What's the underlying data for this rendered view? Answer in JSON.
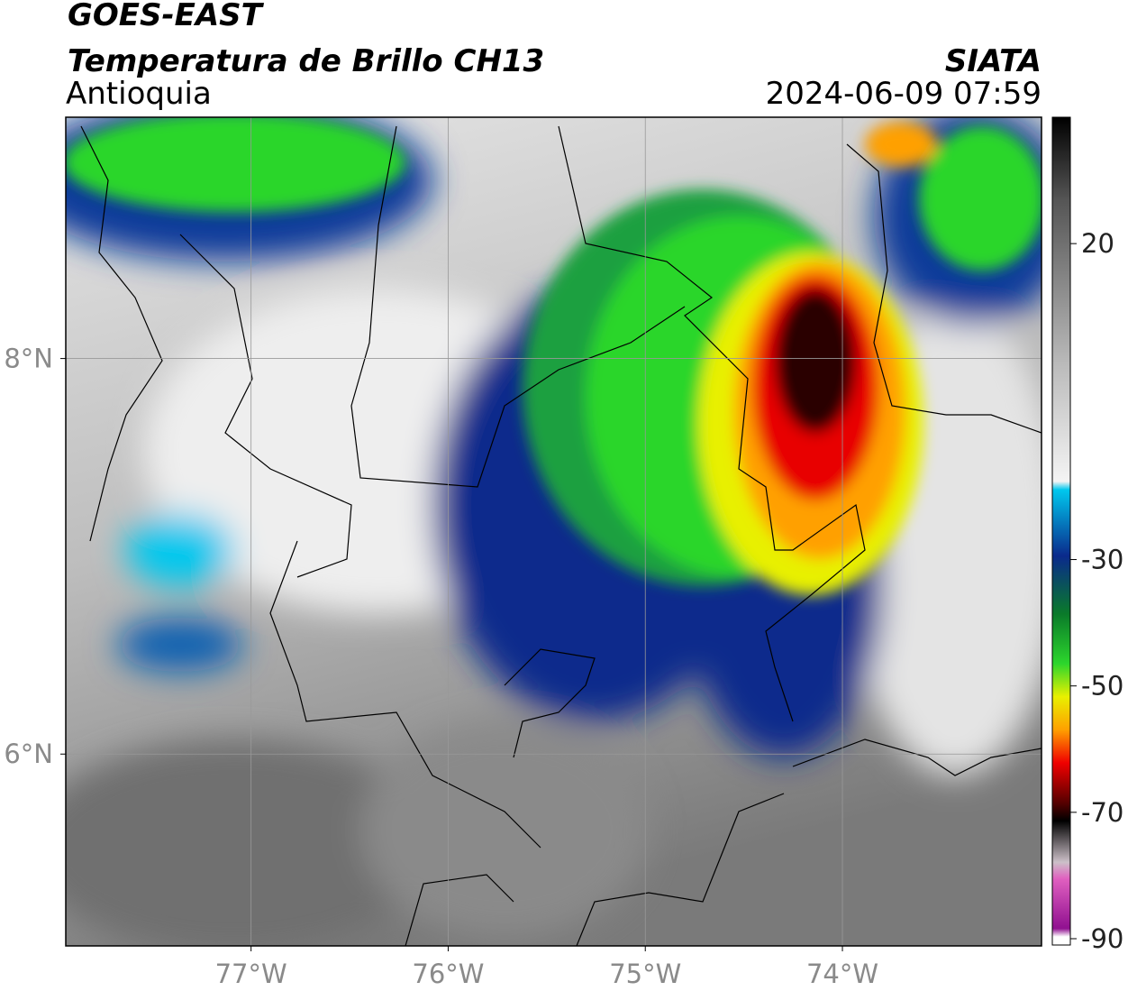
{
  "header": {
    "title": "GOES-EAST",
    "subtitle": "Temperatura de Brillo CH13",
    "region": "Antioquia",
    "source": "SIATA",
    "timestamp": "2024-06-09 07:59"
  },
  "map": {
    "xlim": [
      -77.94,
      -72.99
    ],
    "ylim": [
      5.03,
      9.22
    ],
    "xticks": [
      {
        "value": -77,
        "label": "77°W"
      },
      {
        "value": -76,
        "label": "76°W"
      },
      {
        "value": -75,
        "label": "75°W"
      },
      {
        "value": -74,
        "label": "74°W"
      }
    ],
    "yticks": [
      {
        "value": 8,
        "label": "8°N"
      },
      {
        "value": 6,
        "label": "6°N"
      }
    ],
    "grid": true
  },
  "colorbar": {
    "lim": [
      -91,
      40
    ],
    "ticks": [
      20,
      -30,
      -50,
      -70,
      -90
    ]
  }
}
